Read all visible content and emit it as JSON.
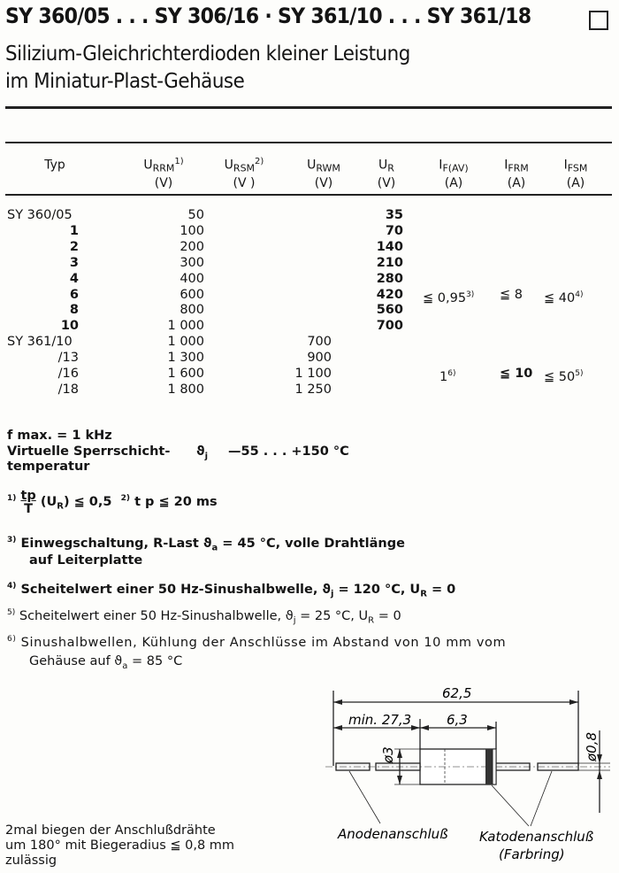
{
  "header": {
    "title": "SY 360/05 . . . SY 306/16 · SY 361/10 . . . SY 361/18",
    "subtitle_line1": "Silizium-Gleichrichterdioden kleiner Leistung",
    "subtitle_line2": "im Miniatur-Plast-Gehäuse",
    "box_icon": "empty-square"
  },
  "table": {
    "columns": [
      {
        "sym": "Typ",
        "sub": "",
        "sup": "",
        "unit": ""
      },
      {
        "sym": "U",
        "sub": "RRM",
        "sup": "1)",
        "unit": "(V)"
      },
      {
        "sym": "U",
        "sub": "RSM",
        "sup": "2)",
        "unit": "(V )"
      },
      {
        "sym": "U",
        "sub": "RWM",
        "sup": "",
        "unit": "(V)"
      },
      {
        "sym": "U",
        "sub": "R",
        "sup": "",
        "unit": "(V)"
      },
      {
        "sym": "I",
        "sub": "F(AV)",
        "sup": "",
        "unit": "(A)"
      },
      {
        "sym": "I",
        "sub": "FRM",
        "sup": "",
        "unit": "(A)"
      },
      {
        "sym": "I",
        "sub": "FSM",
        "sup": "",
        "unit": "(A)"
      }
    ],
    "rows": [
      {
        "typ": "SY 360/05",
        "urrm": "50",
        "urwm": "",
        "ur": "35"
      },
      {
        "typ": "1",
        "urrm": "100",
        "urwm": "",
        "ur": "70"
      },
      {
        "typ": "2",
        "urrm": "200",
        "urwm": "",
        "ur": "140"
      },
      {
        "typ": "3",
        "urrm": "300",
        "urwm": "",
        "ur": "210"
      },
      {
        "typ": "4",
        "urrm": "400",
        "urwm": "",
        "ur": "280"
      },
      {
        "typ": "6",
        "urrm": "600",
        "urwm": "",
        "ur": "420"
      },
      {
        "typ": "8",
        "urrm": "800",
        "urwm": "",
        "ur": "560"
      },
      {
        "typ": "10",
        "urrm": "1 000",
        "urwm": "",
        "ur": "700"
      },
      {
        "typ": "SY 361/10",
        "urrm": "1 000",
        "urwm": "700",
        "ur": ""
      },
      {
        "typ": "/13",
        "urrm": "1 300",
        "urwm": "900",
        "ur": ""
      },
      {
        "typ": "/16",
        "urrm": "1 600",
        "urwm": "1 100",
        "ur": ""
      },
      {
        "typ": "/18",
        "urrm": "1 800",
        "urwm": "1 250",
        "ur": ""
      }
    ],
    "group1": {
      "ifav": "≦ 0,95",
      "ifav_sup": "3)",
      "ifrm": "≦ 8",
      "ifsm": "≦ 40",
      "ifsm_sup": "4)"
    },
    "group2": {
      "ifav": "1",
      "ifav_sup": "6)",
      "ifrm": "≦ 10",
      "ifsm": "≦ 50",
      "ifsm_sup": "5)"
    }
  },
  "specs": {
    "fmax": "f max. = 1 kHz",
    "temp_label1": "Virtuelle Sperrschicht-",
    "temp_label2": "temperatur",
    "temp_sym": "ϑ",
    "temp_sub": "j",
    "temp_value": "—55 . . . +150 °C"
  },
  "notes": {
    "n1_mark": "1)",
    "n1_num": "tp",
    "n1_den": "T",
    "n1_text": "(U",
    "n1_sub": "R",
    "n1_tail": ") ≦ 0,5",
    "n2_mark": "2)",
    "n2_text": "t p ≦ 20 ms",
    "n3_mark": "3)",
    "n3_a": "Einwegschaltung, R-Last ϑ",
    "n3_sub": "a",
    "n3_b": " = 45 °C, volle Drahtlänge",
    "n3_line2": "auf Leiterplatte",
    "n4_mark": "4)",
    "n4_a": "Scheitelwert einer 50 Hz-Sinushalbwelle, ϑ",
    "n4_sub": "j",
    "n4_b": " = 120 °C, U",
    "n4_sub2": "R",
    "n4_c": " = 0",
    "n5_mark": "5)",
    "n5_a": "Scheitelwert einer 50 Hz-Sinushalbwelle, ϑ",
    "n5_sub": "j",
    "n5_b": " = 25 °C, U",
    "n5_sub2": "R",
    "n5_c": " = 0",
    "n6_mark": "6)",
    "n6_a": "Sinushalbwellen, Kühlung der Anschlüsse im Abstand von 10 mm vom",
    "n6_b": "Gehäuse auf ϑ",
    "n6_sub": "a",
    "n6_c": " = 85 °C"
  },
  "bending": {
    "line1": "2mal biegen der Anschlußdrähte",
    "line2": "um 180° mit Biegeradius ≦ 0,8 mm",
    "line3": "zulässig"
  },
  "drawing": {
    "total_length": "62,5",
    "lead_length": "min. 27,3",
    "body_length": "6,3",
    "body_diameter": "ø3",
    "lead_diameter": "ø0,8",
    "anode_label": "Anodenanschluß",
    "cathode_label": "Katodenanschluß",
    "cathode_sub": "(Farbring)"
  }
}
